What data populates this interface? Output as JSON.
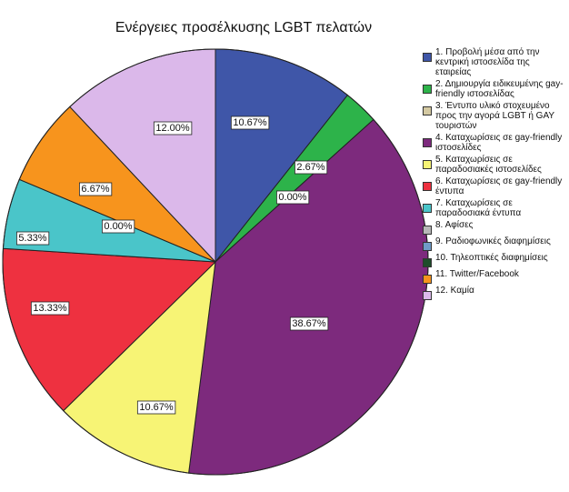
{
  "chart_data": {
    "type": "pie",
    "title": "Ενέργειες προσέλκυσης LGBT πελατών",
    "slices": [
      {
        "name": "1. Προβολή μέσα από την κεντρική ιστοσελίδα της εταιρείας",
        "value": 10.67,
        "label": "10.67%",
        "color": "#3f56a8"
      },
      {
        "name": "2. Δημιουργία ειδικευμένης gay-friendly ιστοσελίδας",
        "value": 2.67,
        "label": "2.67%",
        "color": "#2db34a"
      },
      {
        "name": "3. Έντυπο υλικό στοχευμένο προς την αγορά LGBT ή GAY τουριστών",
        "value": 0.0,
        "label": "0.00%",
        "color": "#d4c9a2"
      },
      {
        "name": "4. Καταχωρίσεις σε gay-friendly ιστοσελίδες",
        "value": 38.67,
        "label": "38.67%",
        "color": "#7d2a7d"
      },
      {
        "name": "5. Καταχωρίσεις σε παραδοσιακές ιστοσελίδες",
        "value": 10.67,
        "label": "10.67%",
        "color": "#f7f475"
      },
      {
        "name": "6. Καταχωρίσεις σε gay-friendly έντυπα",
        "value": 13.33,
        "label": "13.33%",
        "color": "#ee3140"
      },
      {
        "name": "7. Καταχωρίσεις σε παραδοσιακά έντυπα",
        "value": 5.33,
        "label": "5.33%",
        "color": "#4ac5c9"
      },
      {
        "name": "8. Αφίσες",
        "value": 0.0,
        "label": "0.00%",
        "color": "#b8b8b8"
      },
      {
        "name": "9. Ραδιοφωνικές διαφημίσεις",
        "value": 0.0,
        "label": "",
        "color": "#6f9bc8"
      },
      {
        "name": "10. Τηλεοπτικές διαφημίσεις",
        "value": 0.0,
        "label": "",
        "color": "#1e4d2b"
      },
      {
        "name": "11. Twitter/Facebook",
        "value": 6.67,
        "label": "6.67%",
        "color": "#f7941d"
      },
      {
        "name": "12. Καμία",
        "value": 12.0,
        "label": "12.00%",
        "color": "#dbb8ea"
      }
    ],
    "legend": "right",
    "start": "top",
    "direction": "clockwise"
  }
}
